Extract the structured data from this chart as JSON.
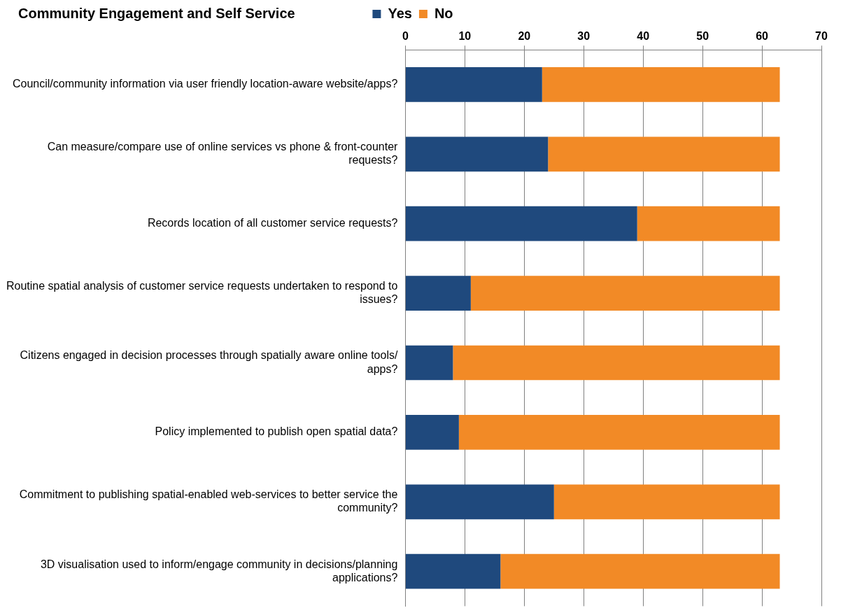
{
  "chart_data": {
    "type": "bar",
    "orientation": "horizontal",
    "stacked": true,
    "title": "Community Engagement and Self Service",
    "categories": [
      "Council/community information via user friendly location-aware website/apps?",
      "Can measure/compare use of online services vs phone & front-counter requests?",
      "Records location of all customer service requests?",
      "Routine spatial analysis of customer service requests undertaken to respond to issues?",
      "Citizens engaged in decision processes through spatially aware online tools/ apps?",
      "Policy implemented to publish open spatial data?",
      "Commitment to publishing spatial-enabled web-services to better service the community?",
      "3D visualisation used to inform/engage community in decisions/planning applications?"
    ],
    "series": [
      {
        "name": "Yes",
        "color": "#1f497d",
        "values": [
          23,
          24,
          39,
          11,
          8,
          9,
          25,
          16
        ]
      },
      {
        "name": "No",
        "color": "#f28a26",
        "values": [
          40,
          39,
          24,
          52,
          55,
          54,
          38,
          47
        ]
      }
    ],
    "xlim": [
      0,
      70
    ],
    "xticks": [
      0,
      10,
      20,
      30,
      40,
      50,
      60,
      70
    ],
    "grid": "x",
    "legend": "top"
  }
}
